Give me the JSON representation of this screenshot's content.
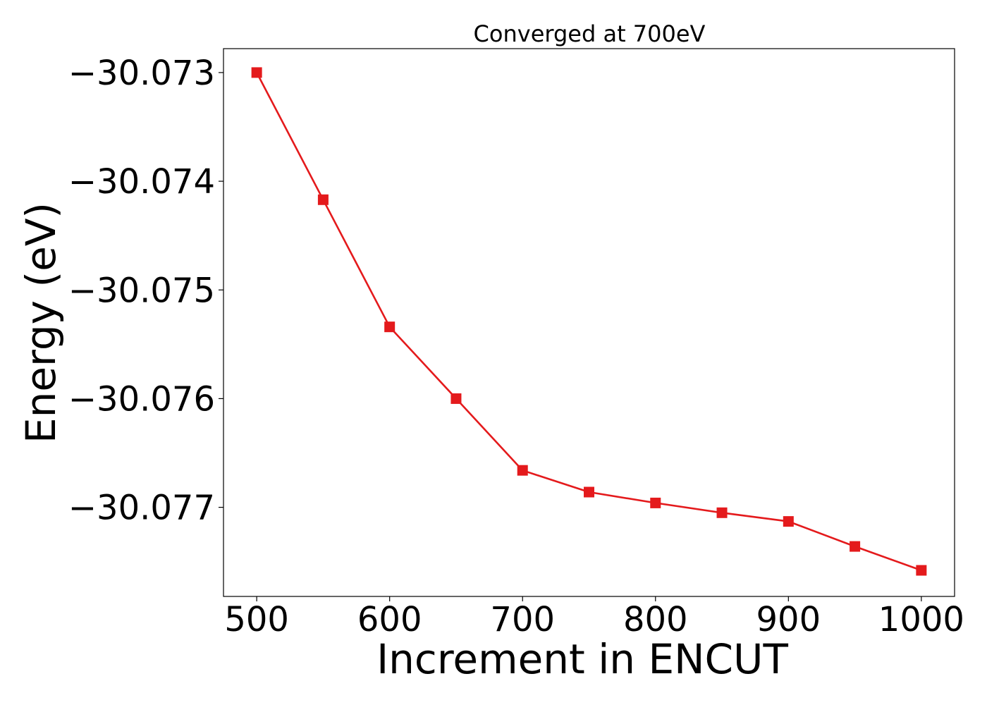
{
  "chart_data": {
    "type": "line",
    "title": "Converged at 700eV",
    "xlabel": "Increment in ENCUT",
    "ylabel": "Energy (eV)",
    "x": [
      500,
      550,
      600,
      650,
      700,
      750,
      800,
      850,
      900,
      950,
      1000
    ],
    "series": [
      {
        "values": [
          -30.073,
          -30.07417,
          -30.07534,
          -30.076,
          -30.07666,
          -30.07686,
          -30.07696,
          -30.07705,
          -30.07713,
          -30.07736,
          -30.07758
        ],
        "color": "#e41a1c",
        "marker": "square"
      }
    ],
    "xticks": [
      500,
      600,
      700,
      800,
      900,
      1000
    ],
    "xtick_labels": [
      "500",
      "600",
      "700",
      "800",
      "900",
      "1000"
    ],
    "yticks": [
      -30.073,
      -30.074,
      -30.075,
      -30.076,
      -30.077
    ],
    "ytick_labels": [
      "−30.073",
      "−30.074",
      "−30.075",
      "−30.076",
      "−30.077"
    ],
    "xlim": [
      475,
      1025
    ],
    "ylim": [
      -30.07782,
      -30.07278
    ],
    "grid": false,
    "legend": "none"
  }
}
